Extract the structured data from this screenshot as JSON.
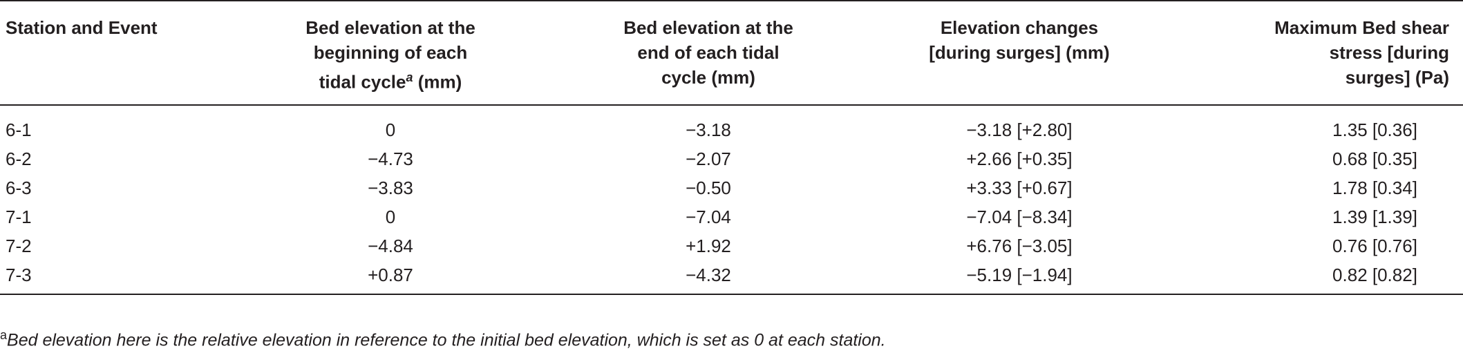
{
  "table": {
    "headers": [
      {
        "lines": [
          "Station and Event"
        ]
      },
      {
        "lines": [
          "Bed elevation at the",
          "beginning of each"
        ],
        "last_line": "tidal cycle",
        "sup": "a",
        "suffix": " (mm)"
      },
      {
        "lines": [
          "Bed elevation at the",
          "end of each tidal",
          "cycle (mm)"
        ]
      },
      {
        "lines": [
          "Elevation changes",
          "[during surges] (mm)"
        ]
      },
      {
        "lines": [
          "Maximum Bed shear",
          "stress [during",
          "surges] (Pa)"
        ]
      }
    ],
    "rows": [
      [
        "6-1",
        "0",
        "−3.18",
        "−3.18 [+2.80]",
        "1.35 [0.36]"
      ],
      [
        "6-2",
        "−4.73",
        "−2.07",
        "+2.66 [+0.35]",
        "0.68 [0.35]"
      ],
      [
        "6-3",
        "−3.83",
        "−0.50",
        "+3.33 [+0.67]",
        "1.78 [0.34]"
      ],
      [
        "7-1",
        "0",
        "−7.04",
        "−7.04 [−8.34]",
        "1.39 [1.39]"
      ],
      [
        "7-2",
        "−4.84",
        "+1.92",
        "+6.76 [−3.05]",
        "0.76 [0.76]"
      ],
      [
        "7-3",
        "+0.87",
        "−4.32",
        "−5.19 [−1.94]",
        "0.82 [0.82]"
      ]
    ]
  },
  "footnote": {
    "mark": "a",
    "text": "Bed elevation here is the relative elevation in reference to the initial bed elevation, which is set as 0 at each station."
  }
}
